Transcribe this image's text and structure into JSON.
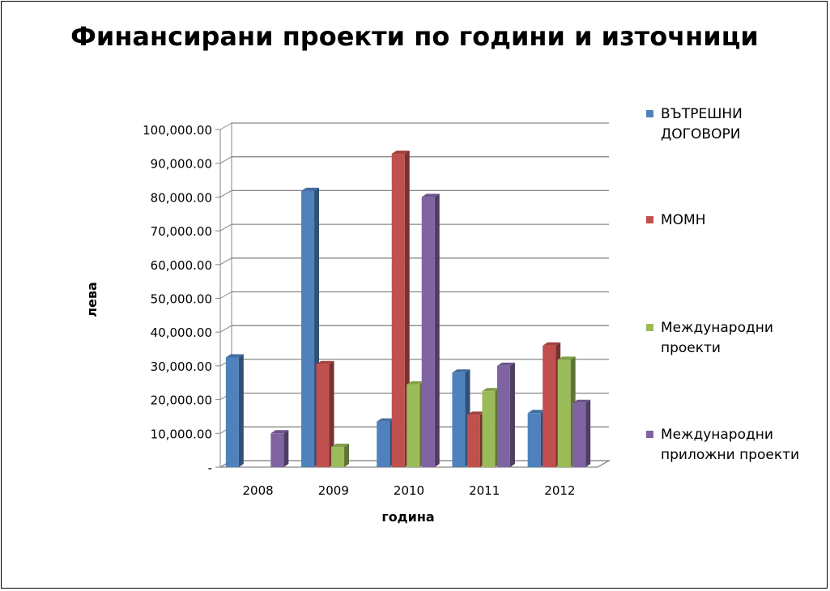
{
  "chart_data": {
    "type": "bar",
    "title": "Финансирани проекти по години и източници",
    "xlabel": "година",
    "ylabel": "лева",
    "categories": [
      "2008",
      "2009",
      "2010",
      "2011",
      "2012"
    ],
    "ylim": [
      0,
      100000
    ],
    "yticks": [
      {
        "value": 0,
        "label": "-"
      },
      {
        "value": 10000,
        "label": "10,000.00"
      },
      {
        "value": 20000,
        "label": "20,000.00"
      },
      {
        "value": 30000,
        "label": "30,000.00"
      },
      {
        "value": 40000,
        "label": "40,000.00"
      },
      {
        "value": 50000,
        "label": "50,000.00"
      },
      {
        "value": 60000,
        "label": "60,000.00"
      },
      {
        "value": 70000,
        "label": "70,000.00"
      },
      {
        "value": 80000,
        "label": "80,000.00"
      },
      {
        "value": 90000,
        "label": "90,000.00"
      },
      {
        "value": 100000,
        "label": "100,000.00"
      }
    ],
    "grid": true,
    "legend_position": "right",
    "series": [
      {
        "name": "ВЪТРЕШНИ ДОГОВОРИ",
        "legend_lines": [
          "ВЪТРЕШНИ",
          "ДОГОВОРИ"
        ],
        "color": "#4F81BD",
        "values": [
          32500,
          81800,
          13500,
          28000,
          16000
        ]
      },
      {
        "name": "МОМН",
        "legend_lines": [
          " МОМН"
        ],
        "color": "#C0504D",
        "values": [
          0,
          30500,
          92800,
          15500,
          36000
        ]
      },
      {
        "name": "Международни проекти",
        "legend_lines": [
          "Международни",
          "проекти"
        ],
        "color": "#9BBB59",
        "values": [
          0,
          6000,
          24500,
          22500,
          31800
        ]
      },
      {
        "name": "Международни приложни проекти",
        "legend_lines": [
          "Международни",
          "приложни проекти"
        ],
        "color": "#8064A2",
        "values": [
          10000,
          0,
          80000,
          30000,
          19000
        ]
      }
    ]
  }
}
